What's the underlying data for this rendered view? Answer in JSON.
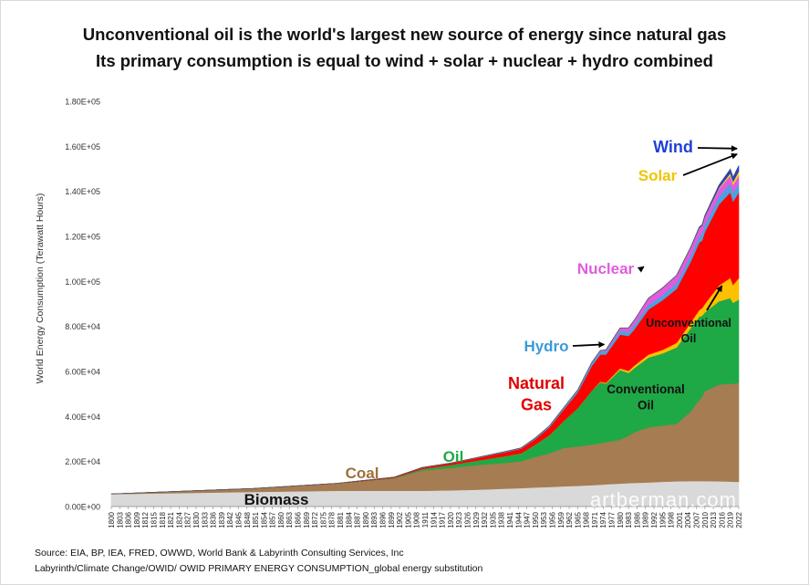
{
  "title_line1": "Unconventional oil is the world's largest new source of energy since natural gas",
  "title_line2": "Its primary consumption is equal to wind + solar + nuclear + hydro combined",
  "source_line1": "Source: EIA, BP, IEA, FRED, OWWD, World Bank & Labyrinth Consulting Services, Inc",
  "source_line2": "Labyrinth/Climate Change/OWID/ OWID PRIMARY ENERGY CONSUMPTION_global energy substitution",
  "watermark": "artberman.com",
  "chart_data": {
    "type": "area",
    "stacked": true,
    "title": "Unconventional oil is the world's largest new source of energy since natural gas",
    "subtitle": "Its primary consumption is equal to wind + solar + nuclear + hydro combined",
    "xlabel": "",
    "ylabel": "World Energy Consumption (Terawatt Hours)",
    "ylim": [
      0,
      180000
    ],
    "y_ticks": [
      "0.00E+00",
      "2.00E+04",
      "4.00E+04",
      "6.00E+04",
      "8.00E+04",
      "1.00E+05",
      "1.20E+05",
      "1.40E+05",
      "1.60E+05",
      "1.80E+05"
    ],
    "y_tick_values": [
      0,
      20000,
      40000,
      60000,
      80000,
      100000,
      120000,
      140000,
      160000,
      180000
    ],
    "x_tick_labels": [
      "1800",
      "1803",
      "1806",
      "1809",
      "1812",
      "1815",
      "1818",
      "1821",
      "1824",
      "1827",
      "1830",
      "1833",
      "1836",
      "1839",
      "1842",
      "1845",
      "1848",
      "1851",
      "1854",
      "1857",
      "1860",
      "1863",
      "1866",
      "1869",
      "1872",
      "1875",
      "1878",
      "1881",
      "1884",
      "1887",
      "1890",
      "1893",
      "1896",
      "1899",
      "1902",
      "1905",
      "1908",
      "1911",
      "1914",
      "1917",
      "1920",
      "1923",
      "1926",
      "1929",
      "1932",
      "1935",
      "1938",
      "1941",
      "1944",
      "1947",
      "1950",
      "1953",
      "1956",
      "1959",
      "1962",
      "1965",
      "1968",
      "1971",
      "1974",
      "1977",
      "1980",
      "1983",
      "1986",
      "1989",
      "1992",
      "1995",
      "1998",
      "2001",
      "2004",
      "2007",
      "2010",
      "2013",
      "2016",
      "2019",
      "2022"
    ],
    "x": [
      1800,
      1850,
      1880,
      1900,
      1910,
      1920,
      1930,
      1940,
      1945,
      1950,
      1955,
      1960,
      1965,
      1970,
      1973,
      1975,
      1980,
      1983,
      1985,
      1990,
      1995,
      2000,
      2005,
      2008,
      2009,
      2010,
      2015,
      2019,
      2020,
      2022
    ],
    "series": [
      {
        "name": "Biomass",
        "label": "Biomass",
        "color": "#d9d9d9",
        "values": [
          5500,
          6500,
          7000,
          7000,
          7000,
          7200,
          7500,
          8000,
          8200,
          8500,
          8700,
          9000,
          9200,
          9500,
          9700,
          9900,
          10200,
          10400,
          10500,
          10700,
          11000,
          11200,
          11300,
          11300,
          11300,
          11300,
          11200,
          11100,
          11000,
          11000
        ]
      },
      {
        "name": "Coal",
        "label": "Coal",
        "color": "#a67c52",
        "values": [
          100,
          1500,
          3200,
          5500,
          9000,
          10000,
          11000,
          11500,
          12000,
          13500,
          15000,
          17000,
          17500,
          18000,
          18500,
          18700,
          19500,
          21000,
          22500,
          24500,
          25000,
          25500,
          31000,
          36000,
          37500,
          40000,
          43000,
          43500,
          43500,
          44000
        ]
      },
      {
        "name": "Conventional Oil",
        "label": "Conventional\nOil",
        "color": "#1fa846",
        "values": [
          0,
          0,
          20,
          200,
          700,
          1200,
          2000,
          3000,
          3500,
          5500,
          8000,
          12000,
          17000,
          24000,
          27000,
          26000,
          31000,
          28000,
          28500,
          31000,
          32000,
          34000,
          37000,
          37000,
          36000,
          35000,
          37000,
          38000,
          36000,
          37000
        ]
      },
      {
        "name": "Unconventional Oil",
        "label": "Unconventional\nOil",
        "color": "#ffc000",
        "values": [
          0,
          0,
          0,
          0,
          0,
          0,
          0,
          0,
          0,
          0,
          0,
          0,
          0,
          0,
          300,
          400,
          700,
          900,
          1100,
          1300,
          1600,
          2000,
          2500,
          3000,
          3300,
          3700,
          7000,
          9000,
          8000,
          9500
        ]
      },
      {
        "name": "Natural Gas",
        "label": "Natural\nGas",
        "color": "#ff0000",
        "values": [
          0,
          0,
          100,
          300,
          600,
          800,
          1200,
          1800,
          2000,
          2500,
          3500,
          5000,
          7000,
          11000,
          12000,
          12500,
          15000,
          15500,
          16000,
          20000,
          22000,
          24000,
          27000,
          30000,
          30000,
          32000,
          36000,
          38000,
          37000,
          38000
        ]
      },
      {
        "name": "Hydro",
        "label": "Hydro",
        "color": "#4aa3df",
        "values": [
          0,
          0,
          0,
          30,
          50,
          100,
          200,
          300,
          350,
          450,
          600,
          800,
          1000,
          1300,
          1400,
          1500,
          1700,
          1800,
          1900,
          2000,
          2200,
          2500,
          2700,
          2900,
          3000,
          3100,
          3500,
          3800,
          3900,
          4000
        ]
      },
      {
        "name": "Nuclear",
        "label": "Nuclear",
        "color": "#e05cde",
        "values": [
          0,
          0,
          0,
          0,
          0,
          0,
          0,
          0,
          0,
          0,
          0,
          10,
          50,
          200,
          400,
          600,
          1200,
          1800,
          2200,
          3000,
          3300,
          3500,
          3600,
          3600,
          3600,
          3650,
          3500,
          3700,
          3600,
          3600
        ]
      },
      {
        "name": "Solar",
        "label": "Solar",
        "color": "#ffd700",
        "values": [
          0,
          0,
          0,
          0,
          0,
          0,
          0,
          0,
          0,
          0,
          0,
          0,
          0,
          0,
          0,
          0,
          0,
          0,
          0,
          0,
          0,
          0,
          5,
          10,
          20,
          40,
          400,
          1000,
          1300,
          1800
        ]
      },
      {
        "name": "Wind",
        "label": "Wind",
        "color": "#1f3fd6",
        "values": [
          0,
          0,
          0,
          0,
          0,
          0,
          0,
          0,
          0,
          0,
          0,
          0,
          0,
          0,
          0,
          0,
          0,
          0,
          0,
          0,
          10,
          40,
          150,
          300,
          400,
          500,
          1200,
          1800,
          2000,
          2500
        ]
      }
    ],
    "annotations": [
      {
        "label": "Wind",
        "color": "#1f3fd6",
        "arrow_to_year": 2022,
        "arrow_to_value": 159000
      },
      {
        "label": "Solar",
        "color": "#f0c400",
        "arrow_to_year": 2022,
        "arrow_to_value": 156500
      },
      {
        "label": "Nuclear",
        "color": "#e05cde",
        "arrow_to_year": 1989,
        "arrow_to_value": 106500
      },
      {
        "label": "Hydro",
        "color": "#3a9bd9",
        "arrow_to_year": 1975,
        "arrow_to_value": 72000
      },
      {
        "label": "Unconventional\nOil",
        "color": "#111111",
        "arrow_to_year": 2016,
        "arrow_to_value": 98000
      }
    ]
  }
}
